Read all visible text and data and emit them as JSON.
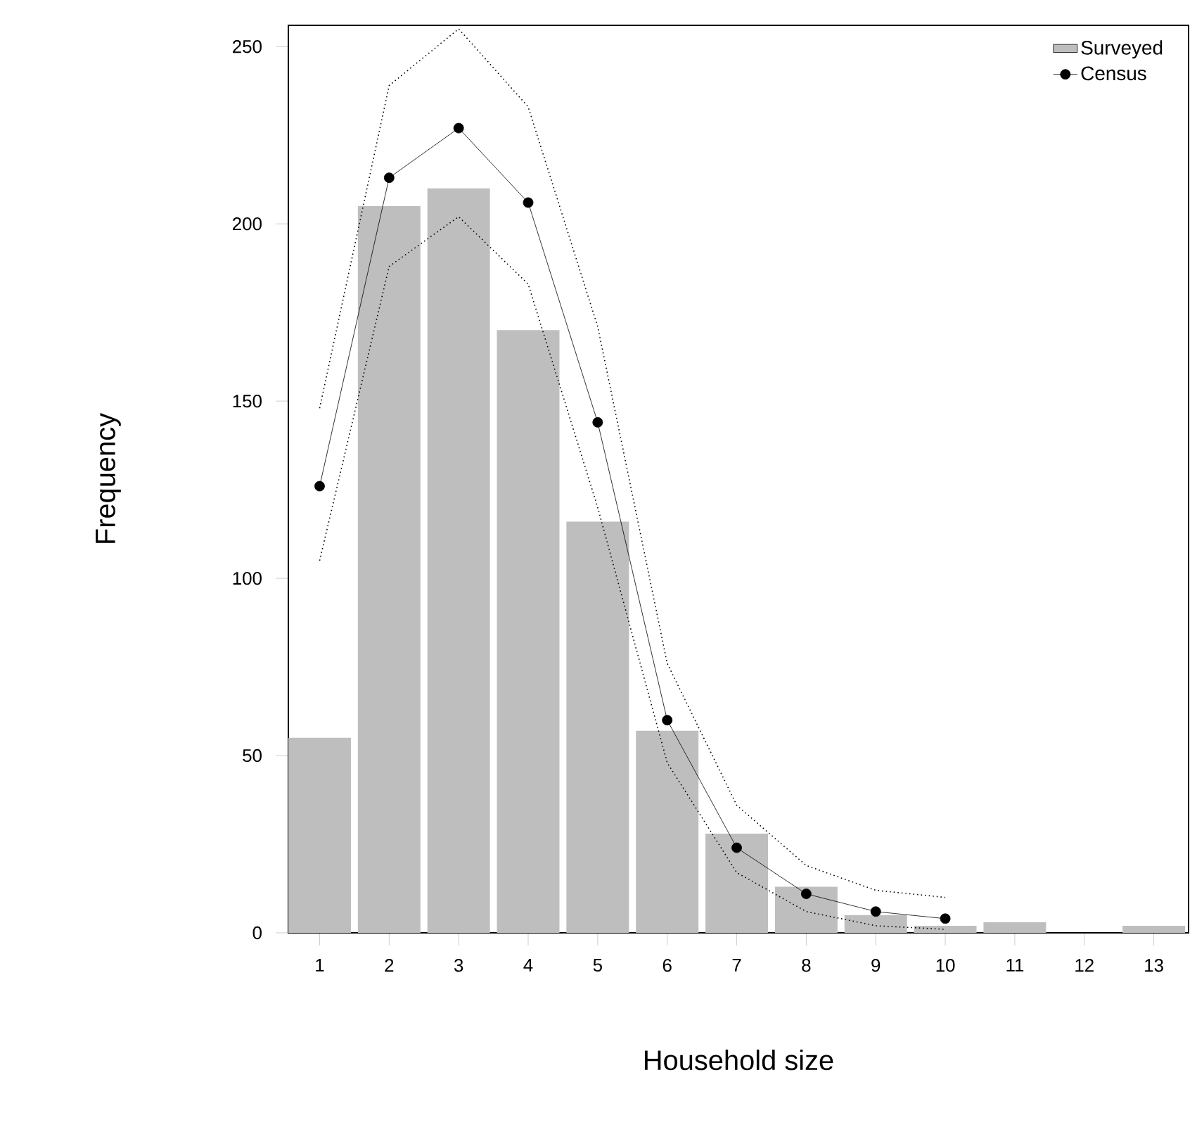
{
  "chart_data": {
    "type": "bar",
    "xlabel": "Household size",
    "ylabel": "Frequency",
    "categories": [
      "1",
      "2",
      "3",
      "4",
      "5",
      "6",
      "7",
      "8",
      "9",
      "10",
      "11",
      "12",
      "13"
    ],
    "series": [
      {
        "name": "Surveyed",
        "color": "#bebebe",
        "values": [
          55,
          205,
          210,
          170,
          116,
          57,
          28,
          13,
          5,
          2,
          3,
          0,
          2
        ]
      },
      {
        "name": "Census",
        "type": "line",
        "color": "#000000",
        "marker": "circle",
        "line_style": "solid",
        "values": [
          126,
          213,
          227,
          206,
          144,
          60,
          24,
          11,
          6,
          4,
          null,
          null,
          null
        ]
      },
      {
        "type": "line",
        "color": "#000000",
        "marker": "none",
        "line_style": "dotted",
        "values": [
          105,
          188,
          202,
          183,
          120,
          48,
          17,
          6,
          2,
          1,
          null,
          null,
          null
        ]
      },
      {
        "type": "line",
        "color": "#000000",
        "marker": "none",
        "line_style": "dotted",
        "values": [
          148,
          239,
          255,
          233,
          171,
          76,
          36,
          19,
          12,
          10,
          null,
          null,
          null
        ]
      }
    ],
    "ylim": [
      0,
      256
    ],
    "yticks": [
      0,
      50,
      100,
      150,
      200,
      250
    ],
    "legend": "top right"
  }
}
